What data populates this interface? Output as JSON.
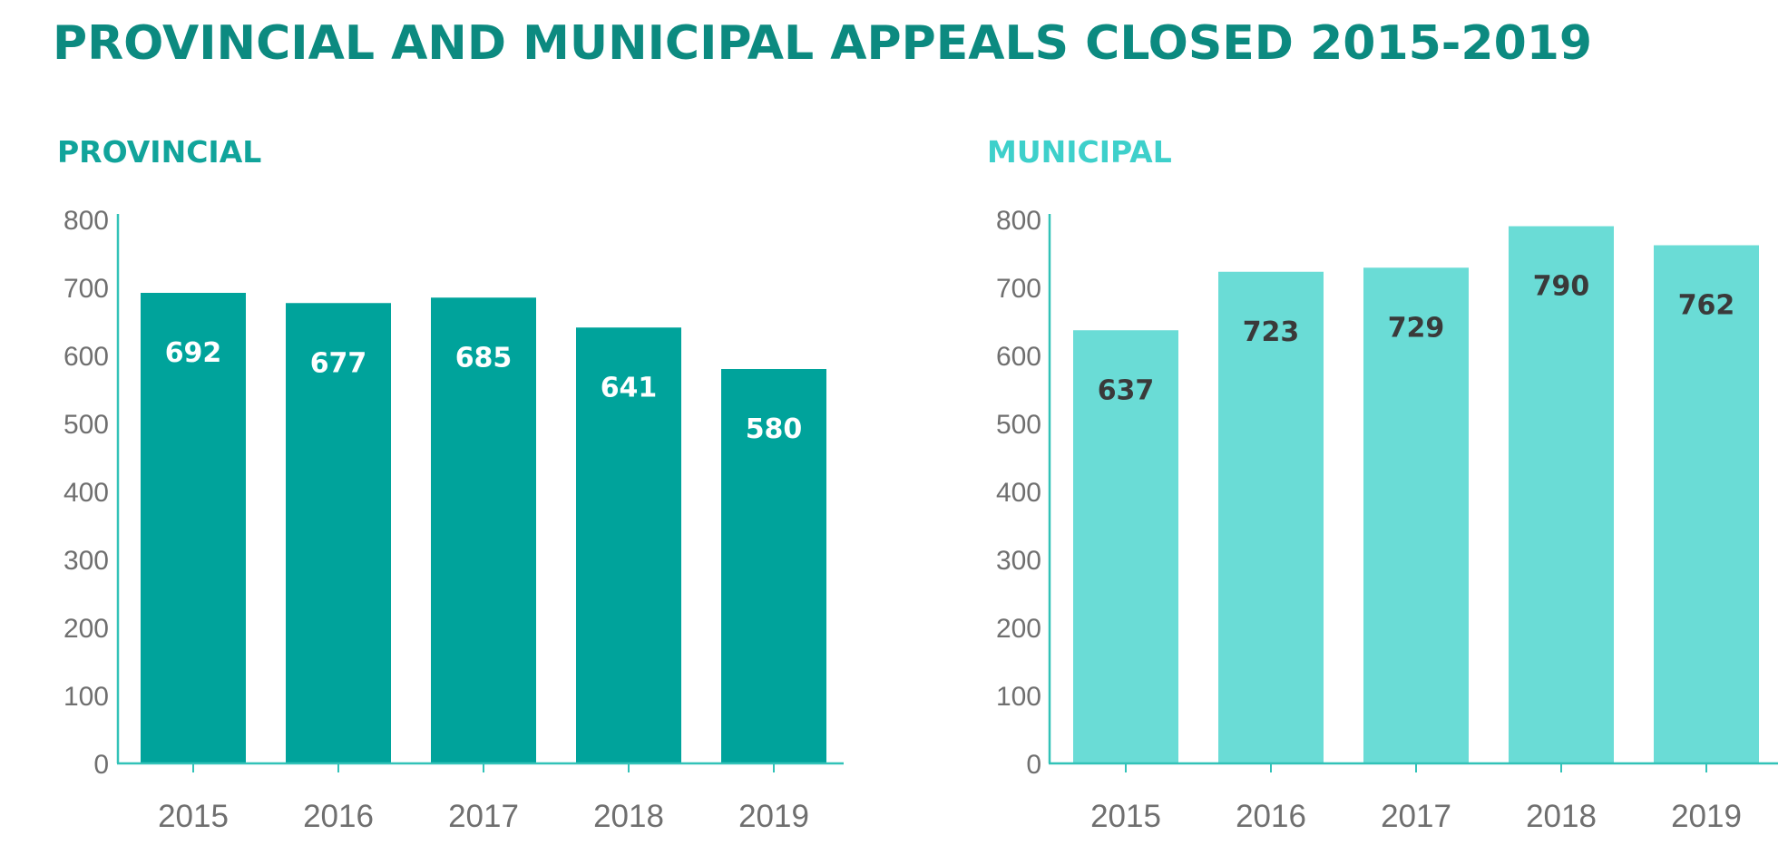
{
  "title": "PROVINCIAL AND MUNICIPAL APPEALS CLOSED 2015-2019",
  "colors": {
    "title": "#0c8a80",
    "provincial_bar": "#00a39b",
    "provincial_label": "#ffffff",
    "provincial_heading": "#11a49b",
    "municipal_bar": "#6adcd6",
    "municipal_label": "#3a3a3a",
    "municipal_heading": "#3ed0cb",
    "axis": "#32c2b8",
    "tick_text": "#6f6f6f"
  },
  "chart_data": [
    {
      "type": "bar",
      "title": "PROVINCIAL",
      "categories": [
        "2015",
        "2016",
        "2017",
        "2018",
        "2019"
      ],
      "values": [
        692,
        677,
        685,
        641,
        580
      ],
      "ylim": [
        0,
        800
      ],
      "yticks": [
        "0",
        "100",
        "200",
        "300",
        "400",
        "500",
        "600",
        "700",
        "800"
      ],
      "xlabel": "",
      "ylabel": "",
      "grid": false,
      "legend": "none"
    },
    {
      "type": "bar",
      "title": "MUNICIPAL",
      "categories": [
        "2015",
        "2016",
        "2017",
        "2018",
        "2019"
      ],
      "values": [
        637,
        723,
        729,
        790,
        762
      ],
      "ylim": [
        0,
        800
      ],
      "yticks": [
        "0",
        "100",
        "200",
        "300",
        "400",
        "500",
        "600",
        "700",
        "800"
      ],
      "xlabel": "",
      "ylabel": "",
      "grid": false,
      "legend": "none"
    }
  ]
}
